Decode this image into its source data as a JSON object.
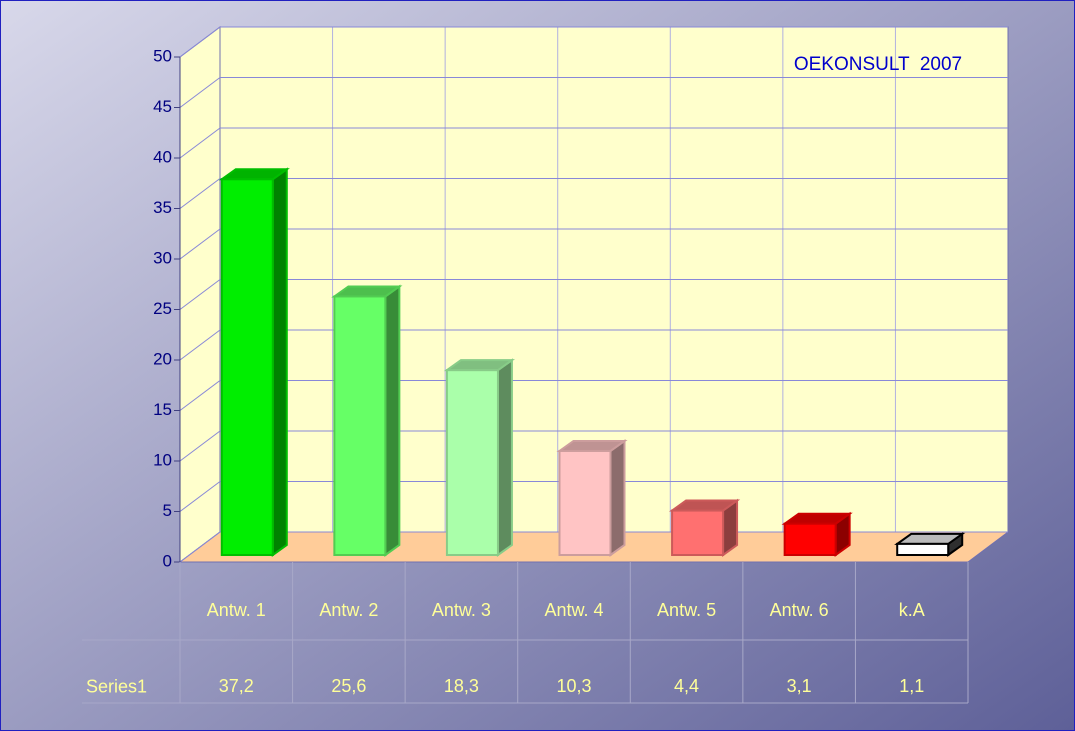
{
  "chart_data": {
    "type": "bar",
    "annotation": "OEKONSULT  2007",
    "categories": [
      "Antw. 1",
      "Antw. 2",
      "Antw. 3",
      "Antw. 4",
      "Antw. 5",
      "Antw. 6",
      "k.A"
    ],
    "series": [
      {
        "name": "Series1",
        "colors": [
          "#00ee00",
          "#66ff66",
          "#aaffaa",
          "#ffc4c4",
          "#ff7070",
          "#ff0000",
          "#ffffff"
        ],
        "values": [
          37.2,
          25.6,
          18.3,
          10.3,
          4.4,
          3.1,
          1.1
        ],
        "value_labels": [
          "37,2",
          "25,6",
          "18,3",
          "10,3",
          "4,4",
          "3,1",
          "1,1"
        ]
      }
    ],
    "ylim": [
      0,
      50
    ],
    "yticks": [
      0,
      5,
      10,
      15,
      20,
      25,
      30,
      35,
      40,
      45,
      50
    ],
    "grid": true,
    "data_table": true
  }
}
